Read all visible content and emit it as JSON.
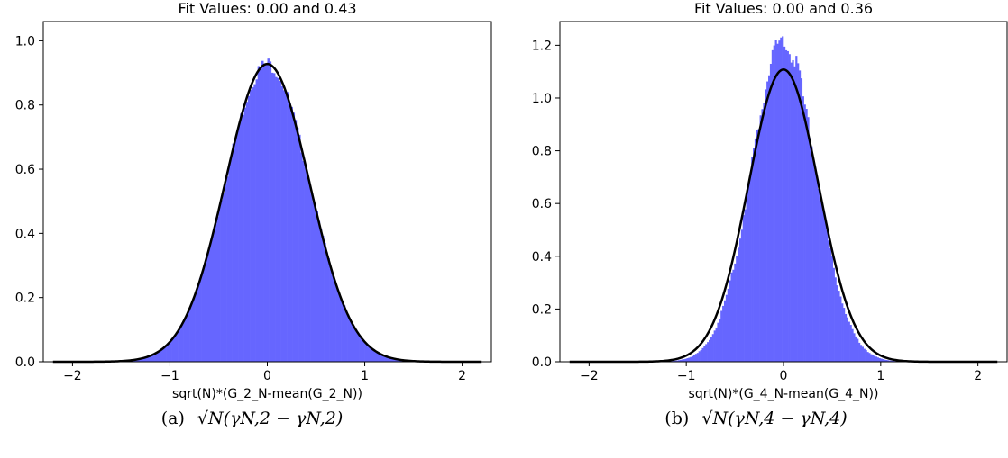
{
  "figure": {
    "panels": [
      {
        "caption_label": "(a)",
        "caption_expr": "√N(γN,2 − γN,2)",
        "chart_data": {
          "type": "bar",
          "title": "Fit Values: 0.00 and 0.43",
          "xlabel": "sqrt(N)*(G_2_N-mean(G_2_N))",
          "ylabel": "",
          "xlim": [
            -2.3,
            2.3
          ],
          "ylim": [
            0,
            1.06
          ],
          "xticks": [
            -2,
            -1,
            0,
            1,
            2
          ],
          "yticks": [
            0.0,
            0.2,
            0.4,
            0.6,
            0.8,
            1.0
          ],
          "grid": false,
          "hist": {
            "mean": 0.0,
            "std": 0.43,
            "color": "#6666ff",
            "noise": 0.025,
            "range": [
              -1.6,
              1.6
            ],
            "bins": 160
          },
          "fit": {
            "mean": 0.0,
            "std": 0.43,
            "color": "#000000",
            "range": [
              -2.2,
              2.2
            ]
          }
        }
      },
      {
        "caption_label": "(b)",
        "caption_expr": "√N(γN,4 − γN,4)",
        "chart_data": {
          "type": "bar",
          "title": "Fit Values: 0.00 and 0.36",
          "xlabel": "sqrt(N)*(G_4_N-mean(G_4_N))",
          "ylabel": "",
          "xlim": [
            -2.3,
            2.3
          ],
          "ylim": [
            0,
            1.29
          ],
          "xticks": [
            -2,
            -1,
            0,
            1,
            2
          ],
          "yticks": [
            0.0,
            0.2,
            0.4,
            0.6,
            0.8,
            1.0,
            1.2
          ],
          "grid": false,
          "hist": {
            "mean": 0.0,
            "std": 0.33,
            "color": "#6666ff",
            "noise": 0.04,
            "range": [
              -1.4,
              1.4
            ],
            "bins": 160
          },
          "fit": {
            "mean": 0.0,
            "std": 0.36,
            "color": "#000000",
            "range": [
              -2.2,
              2.2
            ]
          }
        }
      }
    ]
  }
}
